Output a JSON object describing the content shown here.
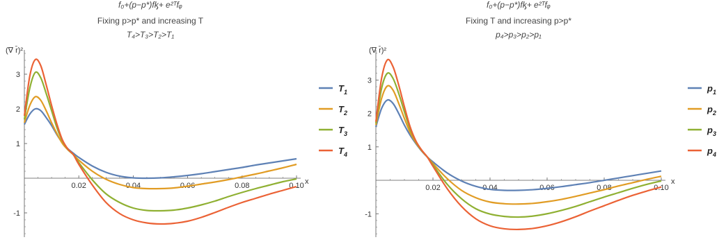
{
  "palette": [
    "#5E81B5",
    "#E19C24",
    "#8FB032",
    "#EB6235"
  ],
  "chart_data": [
    {
      "type": "line",
      "title": "f0+(p−p*)fc+ e^(2 T) fq",
      "title_display": "f₀+(p−p*)fᶄ+ e²ᵀfᵩ",
      "subtitle": "Fixing p>p* and increasing T",
      "subtitle2": "T4>T3>T2>T1",
      "subtitle2_display": "T₄>T₃>T₂>T₁",
      "xlabel": "x",
      "ylabel": "(∇ r̄)²",
      "ylabel_display": "(∇ r̄)²",
      "xlim": [
        0,
        0.1
      ],
      "ylim": [
        -1.7,
        3.7
      ],
      "xticks": [
        0.02,
        0.04,
        0.06,
        0.08,
        0.1
      ],
      "xtick_labels": [
        "0.02",
        "0.04",
        "0.06",
        "0.08",
        "0.10"
      ],
      "yticks": [
        -1,
        1,
        2,
        3
      ],
      "ytick_labels": [
        "-1",
        "1",
        "2",
        "3"
      ],
      "grid": false,
      "legend_position": "right",
      "series": [
        {
          "name": "T1",
          "label_base": "T",
          "label_sub": "1",
          "color": "#5E81B5",
          "x": [
            0,
            0.002,
            0.004,
            0.006,
            0.008,
            0.01,
            0.012,
            0.014,
            0.016,
            0.018,
            0.02,
            0.025,
            0.03,
            0.035,
            0.04,
            0.045,
            0.05,
            0.055,
            0.06,
            0.065,
            0.07,
            0.075,
            0.08,
            0.085,
            0.09,
            0.095,
            0.1
          ],
          "y": [
            1.55,
            1.85,
            2.0,
            1.95,
            1.75,
            1.52,
            1.25,
            1.02,
            0.85,
            0.72,
            0.6,
            0.35,
            0.17,
            0.06,
            0.01,
            0.0,
            0.01,
            0.04,
            0.08,
            0.13,
            0.19,
            0.25,
            0.31,
            0.38,
            0.44,
            0.5,
            0.56
          ]
        },
        {
          "name": "T2",
          "label_base": "T",
          "label_sub": "2",
          "color": "#E19C24",
          "x": [
            0,
            0.002,
            0.004,
            0.006,
            0.008,
            0.01,
            0.012,
            0.014,
            0.016,
            0.018,
            0.02,
            0.025,
            0.03,
            0.035,
            0.04,
            0.045,
            0.05,
            0.055,
            0.06,
            0.065,
            0.07,
            0.075,
            0.08,
            0.085,
            0.09,
            0.095,
            0.1
          ],
          "y": [
            1.6,
            2.1,
            2.35,
            2.25,
            1.95,
            1.6,
            1.28,
            1.0,
            0.82,
            0.68,
            0.52,
            0.2,
            -0.03,
            -0.18,
            -0.27,
            -0.3,
            -0.3,
            -0.28,
            -0.23,
            -0.17,
            -0.11,
            -0.04,
            0.04,
            0.12,
            0.21,
            0.3,
            0.4
          ]
        },
        {
          "name": "T3",
          "label_base": "T",
          "label_sub": "3",
          "color": "#8FB032",
          "x": [
            0,
            0.002,
            0.004,
            0.006,
            0.008,
            0.01,
            0.012,
            0.014,
            0.016,
            0.018,
            0.02,
            0.025,
            0.03,
            0.035,
            0.04,
            0.045,
            0.05,
            0.055,
            0.06,
            0.065,
            0.07,
            0.075,
            0.08,
            0.085,
            0.09,
            0.095,
            0.1
          ],
          "y": [
            1.7,
            2.6,
            3.05,
            2.9,
            2.45,
            1.95,
            1.45,
            1.07,
            0.83,
            0.68,
            0.45,
            -0.05,
            -0.45,
            -0.7,
            -0.86,
            -0.93,
            -0.94,
            -0.92,
            -0.86,
            -0.77,
            -0.66,
            -0.53,
            -0.41,
            -0.3,
            -0.2,
            -0.1,
            -0.02
          ]
        },
        {
          "name": "T4",
          "label_base": "T",
          "label_sub": "4",
          "color": "#EB6235",
          "x": [
            0,
            0.002,
            0.004,
            0.006,
            0.008,
            0.01,
            0.012,
            0.014,
            0.016,
            0.018,
            0.02,
            0.025,
            0.03,
            0.035,
            0.04,
            0.045,
            0.05,
            0.055,
            0.06,
            0.065,
            0.07,
            0.075,
            0.08,
            0.085,
            0.09,
            0.095,
            0.1
          ],
          "y": [
            1.8,
            2.95,
            3.42,
            3.25,
            2.7,
            2.1,
            1.55,
            1.1,
            0.84,
            0.68,
            0.4,
            -0.2,
            -0.7,
            -1.02,
            -1.2,
            -1.29,
            -1.32,
            -1.3,
            -1.24,
            -1.13,
            -0.99,
            -0.84,
            -0.7,
            -0.58,
            -0.46,
            -0.35,
            -0.24
          ]
        }
      ]
    },
    {
      "type": "line",
      "title": "f0+(p−p*)fc+ e^(2 T) fq",
      "title_display": "f₀+(p−p*)fᶄ+ e²ᵀfᵩ",
      "subtitle": "Fixing T and increasing p>p*",
      "subtitle2": "p4>p3>p2>p1",
      "subtitle2_display": "p₄>p₃>p₂>p₁",
      "xlabel": "x",
      "ylabel": "(∇ r̄)²",
      "ylabel_display": "(∇ r̄)²",
      "xlim": [
        0,
        0.1
      ],
      "ylim": [
        -1.7,
        3.9
      ],
      "xticks": [
        0.02,
        0.04,
        0.06,
        0.08,
        0.1
      ],
      "xtick_labels": [
        "0.02",
        "0.04",
        "0.06",
        "0.08",
        "0.10"
      ],
      "yticks": [
        -1,
        1,
        2,
        3
      ],
      "ytick_labels": [
        "-1",
        "1",
        "2",
        "3"
      ],
      "grid": false,
      "legend_position": "right",
      "series": [
        {
          "name": "p1",
          "label_base": "p",
          "label_sub": "1",
          "color": "#5E81B5",
          "x": [
            0,
            0.002,
            0.004,
            0.006,
            0.008,
            0.01,
            0.012,
            0.014,
            0.016,
            0.018,
            0.02,
            0.025,
            0.03,
            0.035,
            0.04,
            0.045,
            0.05,
            0.055,
            0.06,
            0.065,
            0.07,
            0.075,
            0.08,
            0.085,
            0.09,
            0.095,
            0.1
          ],
          "y": [
            1.6,
            2.15,
            2.4,
            2.3,
            2.0,
            1.65,
            1.35,
            1.1,
            0.88,
            0.7,
            0.55,
            0.22,
            -0.02,
            -0.18,
            -0.27,
            -0.3,
            -0.3,
            -0.28,
            -0.24,
            -0.19,
            -0.13,
            -0.07,
            0.0,
            0.07,
            0.14,
            0.21,
            0.28
          ]
        },
        {
          "name": "p2",
          "label_base": "p",
          "label_sub": "2",
          "color": "#E19C24",
          "x": [
            0,
            0.002,
            0.004,
            0.006,
            0.008,
            0.01,
            0.012,
            0.014,
            0.016,
            0.018,
            0.02,
            0.025,
            0.03,
            0.035,
            0.04,
            0.045,
            0.05,
            0.055,
            0.06,
            0.065,
            0.07,
            0.075,
            0.08,
            0.085,
            0.09,
            0.095,
            0.1
          ],
          "y": [
            1.65,
            2.45,
            2.82,
            2.7,
            2.3,
            1.85,
            1.43,
            1.13,
            0.89,
            0.7,
            0.5,
            0.05,
            -0.3,
            -0.52,
            -0.65,
            -0.7,
            -0.71,
            -0.69,
            -0.64,
            -0.57,
            -0.48,
            -0.38,
            -0.28,
            -0.17,
            -0.07,
            0.03,
            0.12
          ]
        },
        {
          "name": "p3",
          "label_base": "p",
          "label_sub": "3",
          "color": "#8FB032",
          "x": [
            0,
            0.002,
            0.004,
            0.006,
            0.008,
            0.01,
            0.012,
            0.014,
            0.016,
            0.018,
            0.02,
            0.025,
            0.03,
            0.035,
            0.04,
            0.045,
            0.05,
            0.055,
            0.06,
            0.065,
            0.07,
            0.075,
            0.08,
            0.085,
            0.09,
            0.095,
            0.1
          ],
          "y": [
            1.7,
            2.75,
            3.2,
            3.05,
            2.6,
            2.05,
            1.53,
            1.16,
            0.9,
            0.7,
            0.46,
            -0.12,
            -0.55,
            -0.85,
            -1.01,
            -1.08,
            -1.1,
            -1.07,
            -1.0,
            -0.9,
            -0.78,
            -0.64,
            -0.5,
            -0.37,
            -0.24,
            -0.12,
            -0.02
          ]
        },
        {
          "name": "p4",
          "label_base": "p",
          "label_sub": "4",
          "color": "#EB6235",
          "x": [
            0,
            0.002,
            0.004,
            0.006,
            0.008,
            0.01,
            0.012,
            0.014,
            0.016,
            0.018,
            0.02,
            0.025,
            0.03,
            0.035,
            0.04,
            0.045,
            0.05,
            0.055,
            0.06,
            0.065,
            0.07,
            0.075,
            0.08,
            0.085,
            0.09,
            0.095,
            0.1
          ],
          "y": [
            1.75,
            3.05,
            3.6,
            3.4,
            2.85,
            2.2,
            1.6,
            1.18,
            0.91,
            0.7,
            0.42,
            -0.25,
            -0.78,
            -1.15,
            -1.36,
            -1.45,
            -1.47,
            -1.44,
            -1.36,
            -1.24,
            -1.09,
            -0.92,
            -0.76,
            -0.6,
            -0.45,
            -0.32,
            -0.2
          ]
        }
      ]
    }
  ]
}
